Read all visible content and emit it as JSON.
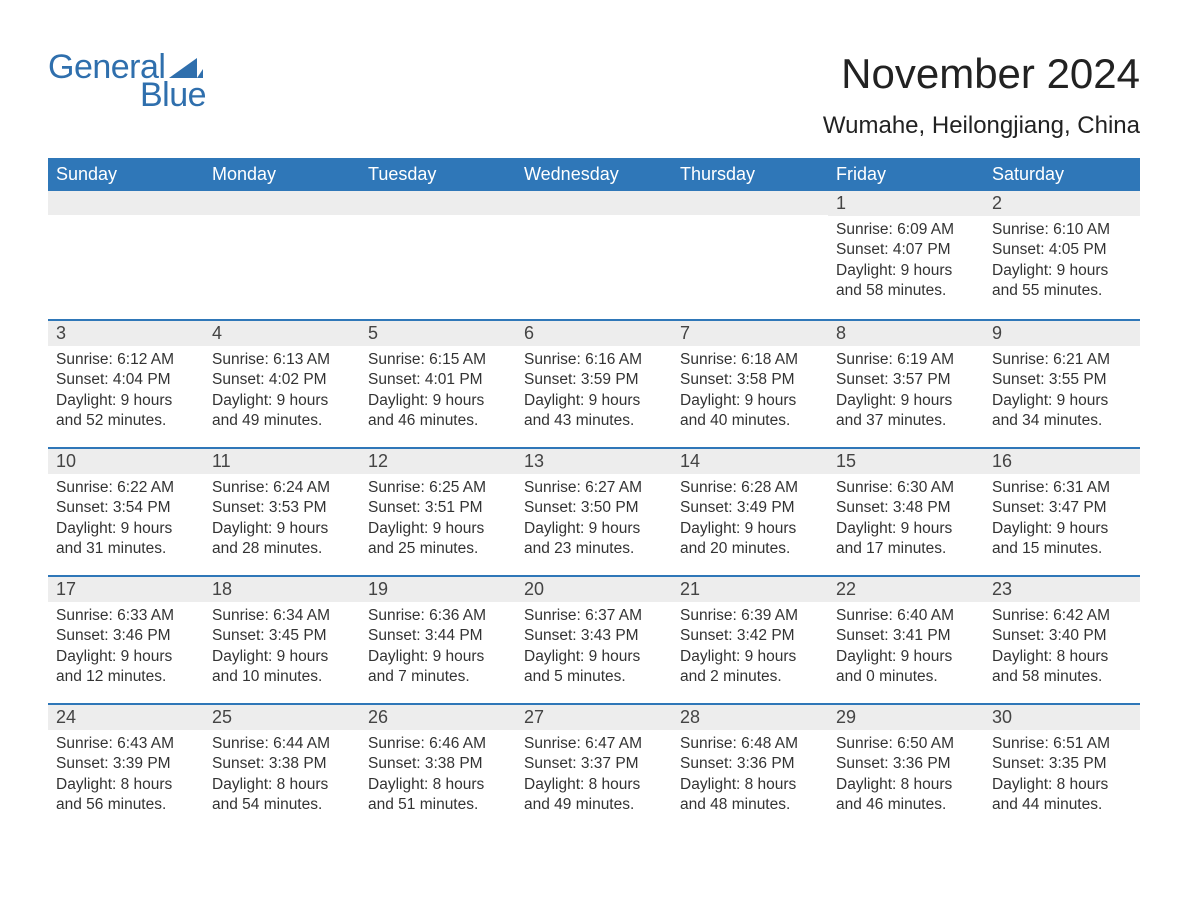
{
  "brand": {
    "general": "General",
    "blue": "Blue",
    "color": "#2f6fad"
  },
  "title": "November 2024",
  "location": "Wumahe, Heilongjiang, China",
  "header_bg": "#2f77b8",
  "header_text_color": "#ffffff",
  "daynum_bg": "#ededed",
  "border_color": "#2f77b8",
  "body_text_color": "#333333",
  "weekdays": [
    "Sunday",
    "Monday",
    "Tuesday",
    "Wednesday",
    "Thursday",
    "Friday",
    "Saturday"
  ],
  "weeks": [
    [
      {
        "empty": true
      },
      {
        "empty": true
      },
      {
        "empty": true
      },
      {
        "empty": true
      },
      {
        "empty": true
      },
      {
        "n": "1",
        "sunrise": "6:09 AM",
        "sunset": "4:07 PM",
        "daylight": "9 hours and 58 minutes."
      },
      {
        "n": "2",
        "sunrise": "6:10 AM",
        "sunset": "4:05 PM",
        "daylight": "9 hours and 55 minutes."
      }
    ],
    [
      {
        "n": "3",
        "sunrise": "6:12 AM",
        "sunset": "4:04 PM",
        "daylight": "9 hours and 52 minutes."
      },
      {
        "n": "4",
        "sunrise": "6:13 AM",
        "sunset": "4:02 PM",
        "daylight": "9 hours and 49 minutes."
      },
      {
        "n": "5",
        "sunrise": "6:15 AM",
        "sunset": "4:01 PM",
        "daylight": "9 hours and 46 minutes."
      },
      {
        "n": "6",
        "sunrise": "6:16 AM",
        "sunset": "3:59 PM",
        "daylight": "9 hours and 43 minutes."
      },
      {
        "n": "7",
        "sunrise": "6:18 AM",
        "sunset": "3:58 PM",
        "daylight": "9 hours and 40 minutes."
      },
      {
        "n": "8",
        "sunrise": "6:19 AM",
        "sunset": "3:57 PM",
        "daylight": "9 hours and 37 minutes."
      },
      {
        "n": "9",
        "sunrise": "6:21 AM",
        "sunset": "3:55 PM",
        "daylight": "9 hours and 34 minutes."
      }
    ],
    [
      {
        "n": "10",
        "sunrise": "6:22 AM",
        "sunset": "3:54 PM",
        "daylight": "9 hours and 31 minutes."
      },
      {
        "n": "11",
        "sunrise": "6:24 AM",
        "sunset": "3:53 PM",
        "daylight": "9 hours and 28 minutes."
      },
      {
        "n": "12",
        "sunrise": "6:25 AM",
        "sunset": "3:51 PM",
        "daylight": "9 hours and 25 minutes."
      },
      {
        "n": "13",
        "sunrise": "6:27 AM",
        "sunset": "3:50 PM",
        "daylight": "9 hours and 23 minutes."
      },
      {
        "n": "14",
        "sunrise": "6:28 AM",
        "sunset": "3:49 PM",
        "daylight": "9 hours and 20 minutes."
      },
      {
        "n": "15",
        "sunrise": "6:30 AM",
        "sunset": "3:48 PM",
        "daylight": "9 hours and 17 minutes."
      },
      {
        "n": "16",
        "sunrise": "6:31 AM",
        "sunset": "3:47 PM",
        "daylight": "9 hours and 15 minutes."
      }
    ],
    [
      {
        "n": "17",
        "sunrise": "6:33 AM",
        "sunset": "3:46 PM",
        "daylight": "9 hours and 12 minutes."
      },
      {
        "n": "18",
        "sunrise": "6:34 AM",
        "sunset": "3:45 PM",
        "daylight": "9 hours and 10 minutes."
      },
      {
        "n": "19",
        "sunrise": "6:36 AM",
        "sunset": "3:44 PM",
        "daylight": "9 hours and 7 minutes."
      },
      {
        "n": "20",
        "sunrise": "6:37 AM",
        "sunset": "3:43 PM",
        "daylight": "9 hours and 5 minutes."
      },
      {
        "n": "21",
        "sunrise": "6:39 AM",
        "sunset": "3:42 PM",
        "daylight": "9 hours and 2 minutes."
      },
      {
        "n": "22",
        "sunrise": "6:40 AM",
        "sunset": "3:41 PM",
        "daylight": "9 hours and 0 minutes."
      },
      {
        "n": "23",
        "sunrise": "6:42 AM",
        "sunset": "3:40 PM",
        "daylight": "8 hours and 58 minutes."
      }
    ],
    [
      {
        "n": "24",
        "sunrise": "6:43 AM",
        "sunset": "3:39 PM",
        "daylight": "8 hours and 56 minutes."
      },
      {
        "n": "25",
        "sunrise": "6:44 AM",
        "sunset": "3:38 PM",
        "daylight": "8 hours and 54 minutes."
      },
      {
        "n": "26",
        "sunrise": "6:46 AM",
        "sunset": "3:38 PM",
        "daylight": "8 hours and 51 minutes."
      },
      {
        "n": "27",
        "sunrise": "6:47 AM",
        "sunset": "3:37 PM",
        "daylight": "8 hours and 49 minutes."
      },
      {
        "n": "28",
        "sunrise": "6:48 AM",
        "sunset": "3:36 PM",
        "daylight": "8 hours and 48 minutes."
      },
      {
        "n": "29",
        "sunrise": "6:50 AM",
        "sunset": "3:36 PM",
        "daylight": "8 hours and 46 minutes."
      },
      {
        "n": "30",
        "sunrise": "6:51 AM",
        "sunset": "3:35 PM",
        "daylight": "8 hours and 44 minutes."
      }
    ]
  ],
  "labels": {
    "sunrise": "Sunrise: ",
    "sunset": "Sunset: ",
    "daylight": "Daylight: "
  }
}
